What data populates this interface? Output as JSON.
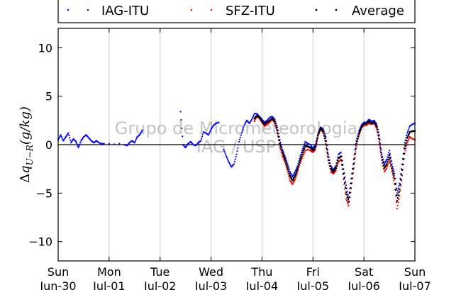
{
  "chart_data": {
    "type": "scatter",
    "ylabel": "Δq_{U−R}(g/kg)",
    "ylim": [
      -12,
      12
    ],
    "yticks": [
      -10,
      -5,
      0,
      5,
      10
    ],
    "xlim": [
      0,
      7
    ],
    "xticks": [
      {
        "x": 0,
        "day": "Sun",
        "date": "Jun-30"
      },
      {
        "x": 1,
        "day": "Mon",
        "date": "Jul-01"
      },
      {
        "x": 2,
        "day": "Tue",
        "date": "Jul-02"
      },
      {
        "x": 3,
        "day": "Wed",
        "date": "Jul-03"
      },
      {
        "x": 4,
        "day": "Thu",
        "date": "Jul-04"
      },
      {
        "x": 5,
        "day": "Fri",
        "date": "Jul-05"
      },
      {
        "x": 6,
        "day": "Sat",
        "date": "Jul-06"
      },
      {
        "x": 7,
        "day": "Sun",
        "date": "Jul-07"
      }
    ],
    "grid": "vertical",
    "legend_position": "top",
    "watermark": [
      "Grupo de Micrometeorologia",
      "IAG / USP"
    ],
    "series": [
      {
        "name": "IAG-ITU",
        "color": "#0000ff",
        "points": [
          [
            0.0,
            0.5
          ],
          [
            0.05,
            1.0
          ],
          [
            0.1,
            0.4
          ],
          [
            0.15,
            0.8
          ],
          [
            0.2,
            1.2
          ],
          [
            0.25,
            0.2
          ],
          [
            0.3,
            0.6
          ],
          [
            0.35,
            0.3
          ],
          [
            0.4,
            -0.3
          ],
          [
            0.45,
            0.4
          ],
          [
            0.5,
            0.8
          ],
          [
            0.55,
            1.0
          ],
          [
            0.6,
            0.7
          ],
          [
            0.65,
            0.4
          ],
          [
            0.7,
            0.2
          ],
          [
            0.75,
            0.4
          ],
          [
            0.8,
            0.2
          ],
          [
            0.85,
            0.1
          ],
          [
            0.9,
            0.1
          ],
          [
            1.0,
            0.1
          ],
          [
            1.1,
            0.05
          ],
          [
            1.2,
            0.1
          ],
          [
            1.3,
            0.0
          ],
          [
            1.35,
            -0.1
          ],
          [
            1.4,
            0.2
          ],
          [
            1.45,
            0.4
          ],
          [
            1.5,
            0.2
          ],
          [
            1.55,
            0.8
          ],
          [
            1.6,
            1.0
          ],
          [
            1.65,
            1.5
          ],
          [
            2.4,
            3.4
          ],
          [
            2.45,
            0.0
          ],
          [
            2.5,
            -0.3
          ],
          [
            2.55,
            0.1
          ],
          [
            2.6,
            0.3
          ],
          [
            2.65,
            0.0
          ],
          [
            2.7,
            -0.1
          ],
          [
            2.75,
            0.2
          ],
          [
            2.8,
            0.4
          ],
          [
            2.85,
            1.3
          ],
          [
            2.9,
            1.2
          ],
          [
            2.95,
            1.0
          ],
          [
            3.0,
            1.6
          ],
          [
            3.05,
            2.0
          ],
          [
            3.1,
            2.2
          ],
          [
            3.15,
            2.3
          ],
          [
            3.25,
            -0.5
          ],
          [
            3.3,
            -1.2
          ],
          [
            3.35,
            -1.8
          ],
          [
            3.4,
            -2.3
          ],
          [
            3.45,
            -2.0
          ],
          [
            3.5,
            -1.0
          ],
          [
            3.55,
            0.3
          ],
          [
            3.6,
            1.2
          ],
          [
            3.65,
            2.0
          ],
          [
            3.7,
            2.5
          ],
          [
            3.75,
            2.2
          ],
          [
            3.8,
            2.6
          ],
          [
            3.85,
            3.2
          ],
          [
            3.9,
            3.2
          ],
          [
            3.95,
            2.9
          ],
          [
            4.0,
            2.6
          ],
          [
            4.05,
            2.3
          ],
          [
            4.1,
            2.5
          ],
          [
            4.15,
            2.8
          ],
          [
            4.2,
            2.9
          ],
          [
            4.25,
            2.6
          ],
          [
            4.3,
            1.8
          ],
          [
            4.35,
            0.5
          ],
          [
            4.4,
            -0.5
          ],
          [
            4.45,
            -1.2
          ],
          [
            4.5,
            -2.0
          ],
          [
            4.55,
            -2.8
          ],
          [
            4.6,
            -3.3
          ],
          [
            4.65,
            -2.8
          ],
          [
            4.7,
            -2.2
          ],
          [
            4.75,
            -1.2
          ],
          [
            4.8,
            -0.4
          ],
          [
            4.85,
            0.3
          ],
          [
            4.9,
            0.1
          ],
          [
            4.95,
            0.0
          ],
          [
            5.0,
            -0.4
          ],
          [
            5.05,
            0.0
          ],
          [
            5.1,
            1.2
          ],
          [
            5.15,
            1.8
          ],
          [
            5.2,
            1.6
          ],
          [
            5.25,
            0.8
          ],
          [
            5.3,
            -1.0
          ],
          [
            5.35,
            -2.2
          ],
          [
            5.4,
            -2.6
          ],
          [
            5.45,
            -2.2
          ],
          [
            5.5,
            -1.0
          ],
          [
            5.55,
            -0.8
          ],
          [
            5.6,
            -2.5
          ],
          [
            5.65,
            -4.2
          ],
          [
            5.7,
            -5.5
          ],
          [
            5.75,
            -3.5
          ],
          [
            5.8,
            -1.5
          ],
          [
            5.85,
            0.4
          ],
          [
            5.9,
            1.4
          ],
          [
            5.95,
            2.0
          ],
          [
            6.0,
            2.3
          ],
          [
            6.05,
            2.3
          ],
          [
            6.1,
            2.6
          ],
          [
            6.15,
            2.4
          ],
          [
            6.2,
            2.5
          ],
          [
            6.25,
            2.1
          ],
          [
            6.3,
            1.0
          ],
          [
            6.35,
            -1.0
          ],
          [
            6.4,
            -2.0
          ],
          [
            6.45,
            -1.5
          ],
          [
            6.5,
            -0.6
          ],
          [
            6.55,
            -2.0
          ],
          [
            6.6,
            -3.0
          ],
          [
            6.65,
            -5.0
          ],
          [
            6.7,
            -4.0
          ],
          [
            6.75,
            -2.0
          ],
          [
            6.8,
            0.2
          ],
          [
            6.85,
            1.2
          ],
          [
            6.9,
            1.9
          ],
          [
            6.95,
            2.1
          ],
          [
            7.0,
            2.2
          ]
        ]
      },
      {
        "name": "SFZ-ITU",
        "color": "#ff0000",
        "points": [
          [
            3.85,
            2.4
          ],
          [
            3.9,
            2.9
          ],
          [
            3.95,
            2.7
          ],
          [
            4.0,
            2.3
          ],
          [
            4.05,
            1.9
          ],
          [
            4.1,
            2.1
          ],
          [
            4.15,
            2.3
          ],
          [
            4.2,
            2.6
          ],
          [
            4.25,
            2.2
          ],
          [
            4.3,
            1.3
          ],
          [
            4.35,
            -0.3
          ],
          [
            4.4,
            -1.2
          ],
          [
            4.45,
            -1.8
          ],
          [
            4.5,
            -2.8
          ],
          [
            4.55,
            -3.7
          ],
          [
            4.6,
            -4.1
          ],
          [
            4.65,
            -3.6
          ],
          [
            4.7,
            -2.8
          ],
          [
            4.75,
            -1.9
          ],
          [
            4.8,
            -1.2
          ],
          [
            4.85,
            -0.6
          ],
          [
            4.9,
            -0.5
          ],
          [
            4.95,
            -0.6
          ],
          [
            5.0,
            -0.8
          ],
          [
            5.05,
            -0.5
          ],
          [
            5.1,
            0.9
          ],
          [
            5.15,
            1.6
          ],
          [
            5.2,
            1.2
          ],
          [
            5.25,
            0.1
          ],
          [
            5.3,
            -1.6
          ],
          [
            5.35,
            -2.8
          ],
          [
            5.4,
            -3.0
          ],
          [
            5.45,
            -2.7
          ],
          [
            5.5,
            -1.8
          ],
          [
            5.55,
            -1.5
          ],
          [
            5.6,
            -3.6
          ],
          [
            5.65,
            -5.6
          ],
          [
            5.7,
            -6.3
          ],
          [
            5.75,
            -4.5
          ],
          [
            5.8,
            -2.4
          ],
          [
            5.85,
            -0.2
          ],
          [
            5.9,
            0.9
          ],
          [
            5.95,
            1.7
          ],
          [
            6.0,
            2.0
          ],
          [
            6.05,
            2.0
          ],
          [
            6.1,
            2.2
          ],
          [
            6.15,
            2.1
          ],
          [
            6.2,
            2.2
          ],
          [
            6.25,
            1.7
          ],
          [
            6.3,
            0.3
          ],
          [
            6.35,
            -1.6
          ],
          [
            6.4,
            -2.8
          ],
          [
            6.45,
            -2.4
          ],
          [
            6.5,
            -1.6
          ],
          [
            6.55,
            -2.8
          ],
          [
            6.6,
            -4.0
          ],
          [
            6.65,
            -6.6
          ],
          [
            6.7,
            -5.3
          ],
          [
            6.75,
            -3.2
          ],
          [
            6.8,
            -0.9
          ],
          [
            6.85,
            0.2
          ],
          [
            6.9,
            0.8
          ],
          [
            6.95,
            0.6
          ],
          [
            7.0,
            0.5
          ]
        ]
      },
      {
        "name": "Average",
        "color": "#000000",
        "points": [
          [
            3.85,
            2.7
          ],
          [
            3.9,
            3.0
          ],
          [
            3.95,
            2.8
          ],
          [
            4.0,
            2.4
          ],
          [
            4.05,
            2.1
          ],
          [
            4.1,
            2.3
          ],
          [
            4.15,
            2.5
          ],
          [
            4.2,
            2.7
          ],
          [
            4.25,
            2.4
          ],
          [
            4.3,
            1.5
          ],
          [
            4.35,
            0.1
          ],
          [
            4.4,
            -0.8
          ],
          [
            4.45,
            -1.5
          ],
          [
            4.5,
            -2.4
          ],
          [
            4.55,
            -3.2
          ],
          [
            4.6,
            -3.7
          ],
          [
            4.65,
            -3.2
          ],
          [
            4.7,
            -2.5
          ],
          [
            4.75,
            -1.6
          ],
          [
            4.8,
            -0.8
          ],
          [
            4.85,
            -0.1
          ],
          [
            4.9,
            -0.2
          ],
          [
            4.95,
            -0.3
          ],
          [
            5.0,
            -0.6
          ],
          [
            5.05,
            -0.2
          ],
          [
            5.1,
            1.0
          ],
          [
            5.15,
            1.7
          ],
          [
            5.2,
            1.4
          ],
          [
            5.25,
            0.4
          ],
          [
            5.3,
            -1.3
          ],
          [
            5.35,
            -2.5
          ],
          [
            5.4,
            -2.8
          ],
          [
            5.45,
            -2.4
          ],
          [
            5.5,
            -1.4
          ],
          [
            5.55,
            -1.2
          ],
          [
            5.6,
            -3.0
          ],
          [
            5.65,
            -4.9
          ],
          [
            5.7,
            -5.9
          ],
          [
            5.75,
            -4.0
          ],
          [
            5.8,
            -2.0
          ],
          [
            5.85,
            0.1
          ],
          [
            5.9,
            1.1
          ],
          [
            5.95,
            1.8
          ],
          [
            6.0,
            2.1
          ],
          [
            6.05,
            2.2
          ],
          [
            6.1,
            2.4
          ],
          [
            6.15,
            2.2
          ],
          [
            6.2,
            2.3
          ],
          [
            6.25,
            1.9
          ],
          [
            6.3,
            0.6
          ],
          [
            6.35,
            -1.3
          ],
          [
            6.4,
            -2.4
          ],
          [
            6.45,
            -2.0
          ],
          [
            6.5,
            -1.1
          ],
          [
            6.55,
            -2.4
          ],
          [
            6.6,
            -3.5
          ],
          [
            6.65,
            -5.8
          ],
          [
            6.7,
            -4.6
          ],
          [
            6.75,
            -2.6
          ],
          [
            6.8,
            -0.4
          ],
          [
            6.85,
            0.7
          ],
          [
            6.9,
            1.3
          ],
          [
            6.95,
            1.4
          ],
          [
            7.0,
            1.4
          ]
        ]
      }
    ]
  }
}
